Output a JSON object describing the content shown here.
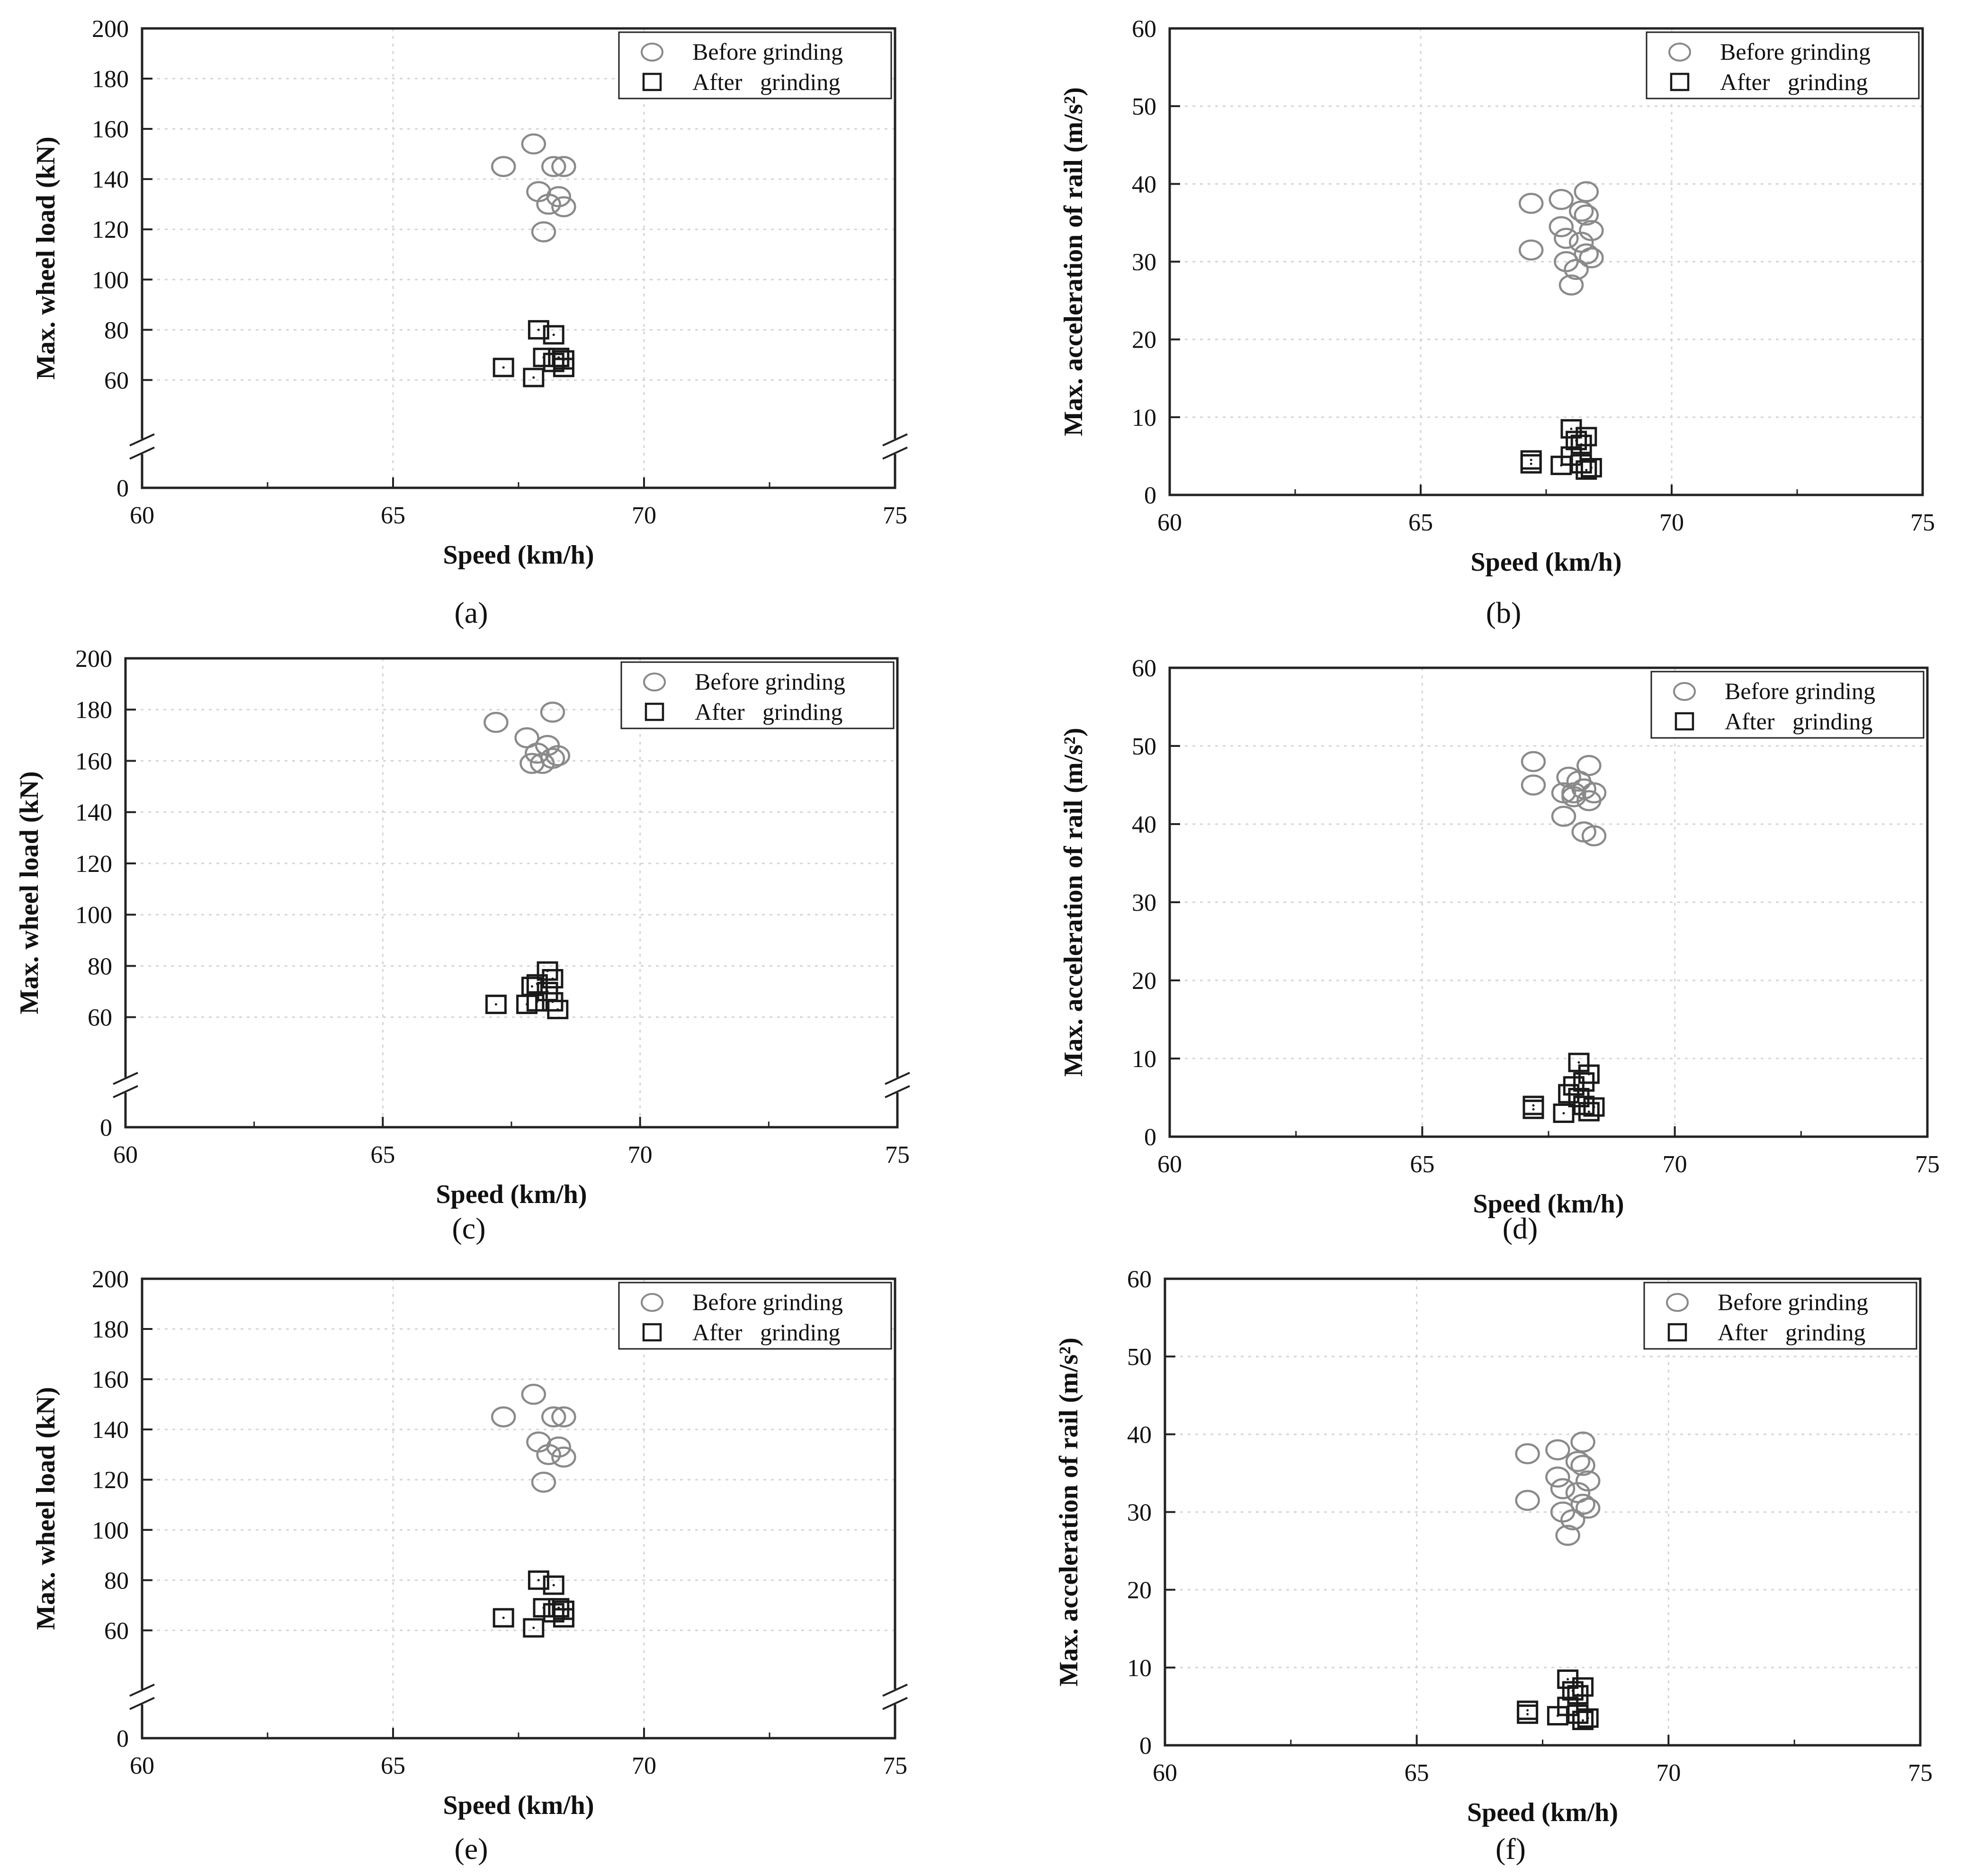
{
  "legend": {
    "before": "Before grinding",
    "after": "After   grinding"
  },
  "colors": {
    "before": "#8a8a8a",
    "after": "#1a1a1a",
    "axis": "#222222",
    "grid": "#d4d4d4"
  },
  "chart_data": [
    {
      "type": "scatter",
      "panel": "(a)",
      "xlabel": "Speed (km/h)",
      "ylabel": "Max. wheel load (kN)",
      "xlim": [
        60,
        75
      ],
      "ylim": [
        0,
        200
      ],
      "axis_break": true,
      "xticks": [
        60,
        65,
        70,
        75
      ],
      "yticks": [
        0,
        60,
        80,
        100,
        120,
        140,
        160,
        180,
        200
      ],
      "grid": true,
      "legend_position": "top-right",
      "series": [
        {
          "name": "Before grinding",
          "marker": "circle",
          "points": [
            [
              67.2,
              145
            ],
            [
              67.8,
              154
            ],
            [
              68.2,
              145
            ],
            [
              68.4,
              145
            ],
            [
              67.9,
              135
            ],
            [
              68.3,
              133
            ],
            [
              68.1,
              130
            ],
            [
              68.4,
              129
            ],
            [
              68.0,
              119
            ]
          ]
        },
        {
          "name": "After   grinding",
          "marker": "square",
          "points": [
            [
              67.9,
              80
            ],
            [
              68.2,
              78
            ],
            [
              67.2,
              65
            ],
            [
              67.8,
              61
            ],
            [
              68.0,
              69
            ],
            [
              68.3,
              69
            ],
            [
              68.4,
              68
            ],
            [
              68.2,
              67
            ],
            [
              68.4,
              65
            ]
          ]
        }
      ]
    },
    {
      "type": "scatter",
      "panel": "(b)",
      "xlabel": "Speed (km/h)",
      "ylabel": "Max. acceleration of rail (m/s²)",
      "xlim": [
        60,
        75
      ],
      "ylim": [
        0,
        60
      ],
      "xticks": [
        60,
        65,
        70,
        75
      ],
      "yticks": [
        0,
        10,
        20,
        30,
        40,
        50,
        60
      ],
      "grid": true,
      "legend_position": "top-right",
      "series": [
        {
          "name": "Before grinding",
          "marker": "circle",
          "points": [
            [
              67.2,
              37.5
            ],
            [
              67.8,
              38.0
            ],
            [
              68.3,
              39.0
            ],
            [
              68.2,
              36.5
            ],
            [
              68.3,
              36.0
            ],
            [
              67.8,
              34.5
            ],
            [
              68.4,
              34.0
            ],
            [
              67.9,
              33.0
            ],
            [
              68.2,
              32.5
            ],
            [
              67.2,
              31.5
            ],
            [
              68.3,
              31.0
            ],
            [
              68.4,
              30.5
            ],
            [
              67.9,
              30.0
            ],
            [
              68.1,
              29.0
            ],
            [
              68.0,
              27.0
            ]
          ]
        },
        {
          "name": "After   grinding",
          "marker": "square",
          "points": [
            [
              68.0,
              8.5
            ],
            [
              68.3,
              7.5
            ],
            [
              68.1,
              7.0
            ],
            [
              68.2,
              6.5
            ],
            [
              67.2,
              4.0
            ],
            [
              67.2,
              4.5
            ],
            [
              67.8,
              3.8
            ],
            [
              68.2,
              4.0
            ],
            [
              68.4,
              3.5
            ],
            [
              68.3,
              3.2
            ],
            [
              68.0,
              5.0
            ]
          ]
        }
      ]
    },
    {
      "type": "scatter",
      "panel": "(c)",
      "xlabel": "Speed (km/h)",
      "ylabel": "Max. wheel load (kN)",
      "xlim": [
        60,
        75
      ],
      "ylim": [
        0,
        200
      ],
      "axis_break": true,
      "xticks": [
        60,
        65,
        70,
        75
      ],
      "yticks": [
        0,
        60,
        80,
        100,
        120,
        140,
        160,
        180,
        200
      ],
      "grid": true,
      "legend_position": "top-right",
      "series": [
        {
          "name": "Before grinding",
          "marker": "circle",
          "points": [
            [
              67.2,
              175
            ],
            [
              68.3,
              179
            ],
            [
              67.8,
              169
            ],
            [
              68.2,
              166
            ],
            [
              68.0,
              163
            ],
            [
              68.4,
              162
            ],
            [
              67.9,
              159
            ],
            [
              68.1,
              159
            ],
            [
              68.3,
              161
            ]
          ]
        },
        {
          "name": "After   grinding",
          "marker": "square",
          "points": [
            [
              67.2,
              65
            ],
            [
              68.2,
              78
            ],
            [
              68.3,
              75
            ],
            [
              68.0,
              73
            ],
            [
              67.9,
              72
            ],
            [
              68.2,
              70
            ],
            [
              67.8,
              65
            ],
            [
              68.0,
              66
            ],
            [
              68.3,
              66
            ],
            [
              68.4,
              63
            ]
          ]
        }
      ]
    },
    {
      "type": "scatter",
      "panel": "(d)",
      "xlabel": "Speed (km/h)",
      "ylabel": "Max. acceleration of rail (m/s²)",
      "xlim": [
        60,
        75
      ],
      "ylim": [
        0,
        60
      ],
      "xticks": [
        60,
        65,
        70,
        75
      ],
      "yticks": [
        0,
        10,
        20,
        30,
        40,
        50,
        60
      ],
      "grid": true,
      "legend_position": "top-right",
      "series": [
        {
          "name": "Before grinding",
          "marker": "circle",
          "points": [
            [
              67.2,
              48.0
            ],
            [
              67.2,
              45.0
            ],
            [
              67.9,
              46.0
            ],
            [
              68.3,
              47.5
            ],
            [
              68.1,
              45.5
            ],
            [
              67.8,
              44.0
            ],
            [
              68.0,
              44.0
            ],
            [
              68.2,
              44.5
            ],
            [
              68.4,
              44.0
            ],
            [
              68.3,
              43.0
            ],
            [
              67.8,
              41.0
            ],
            [
              68.2,
              39.0
            ],
            [
              68.4,
              38.5
            ],
            [
              68.0,
              43.5
            ]
          ]
        },
        {
          "name": "After   grinding",
          "marker": "square",
          "points": [
            [
              68.1,
              9.5
            ],
            [
              68.3,
              8.0
            ],
            [
              68.2,
              7.0
            ],
            [
              68.0,
              6.5
            ],
            [
              67.9,
              5.5
            ],
            [
              67.2,
              4.0
            ],
            [
              67.2,
              3.5
            ],
            [
              67.8,
              3.0
            ],
            [
              68.2,
              4.0
            ],
            [
              68.4,
              3.8
            ],
            [
              68.3,
              3.2
            ],
            [
              68.1,
              5.0
            ]
          ]
        }
      ]
    },
    {
      "type": "scatter",
      "panel": "(e)",
      "xlabel": "Speed (km/h)",
      "ylabel": "Max. wheel load (kN)",
      "xlim": [
        60,
        75
      ],
      "ylim": [
        0,
        200
      ],
      "axis_break": true,
      "xticks": [
        60,
        65,
        70,
        75
      ],
      "yticks": [
        0,
        60,
        80,
        100,
        120,
        140,
        160,
        180,
        200
      ],
      "grid": true,
      "legend_position": "top-right",
      "series": [
        {
          "name": "Before grinding",
          "marker": "circle",
          "points": [
            [
              67.2,
              145
            ],
            [
              67.8,
              154
            ],
            [
              68.2,
              145
            ],
            [
              68.4,
              145
            ],
            [
              67.9,
              135
            ],
            [
              68.3,
              133
            ],
            [
              68.1,
              130
            ],
            [
              68.4,
              129
            ],
            [
              68.0,
              119
            ]
          ]
        },
        {
          "name": "After   grinding",
          "marker": "square",
          "points": [
            [
              67.9,
              80
            ],
            [
              68.2,
              78
            ],
            [
              67.2,
              65
            ],
            [
              67.8,
              61
            ],
            [
              68.0,
              69
            ],
            [
              68.3,
              69
            ],
            [
              68.4,
              68
            ],
            [
              68.2,
              67
            ],
            [
              68.4,
              65
            ]
          ]
        }
      ]
    },
    {
      "type": "scatter",
      "panel": "(f)",
      "xlabel": "Speed (km/h)",
      "ylabel": "Max. acceleration of rail (m/s²)",
      "xlim": [
        60,
        75
      ],
      "ylim": [
        0,
        60
      ],
      "xticks": [
        60,
        65,
        70,
        75
      ],
      "yticks": [
        0,
        10,
        20,
        30,
        40,
        50,
        60
      ],
      "grid": true,
      "legend_position": "top-right",
      "series": [
        {
          "name": "Before grinding",
          "marker": "circle",
          "points": [
            [
              67.2,
              37.5
            ],
            [
              67.8,
              38.0
            ],
            [
              68.3,
              39.0
            ],
            [
              68.2,
              36.5
            ],
            [
              68.3,
              36.0
            ],
            [
              67.8,
              34.5
            ],
            [
              68.4,
              34.0
            ],
            [
              67.9,
              33.0
            ],
            [
              68.2,
              32.5
            ],
            [
              67.2,
              31.5
            ],
            [
              68.3,
              31.0
            ],
            [
              68.4,
              30.5
            ],
            [
              67.9,
              30.0
            ],
            [
              68.1,
              29.0
            ],
            [
              68.0,
              27.0
            ]
          ]
        },
        {
          "name": "After   grinding",
          "marker": "square",
          "points": [
            [
              68.0,
              8.5
            ],
            [
              68.3,
              7.5
            ],
            [
              68.1,
              7.0
            ],
            [
              68.2,
              6.5
            ],
            [
              67.2,
              4.0
            ],
            [
              67.2,
              4.5
            ],
            [
              67.8,
              3.8
            ],
            [
              68.2,
              4.0
            ],
            [
              68.4,
              3.5
            ],
            [
              68.3,
              3.2
            ],
            [
              68.0,
              5.0
            ]
          ]
        }
      ]
    }
  ]
}
